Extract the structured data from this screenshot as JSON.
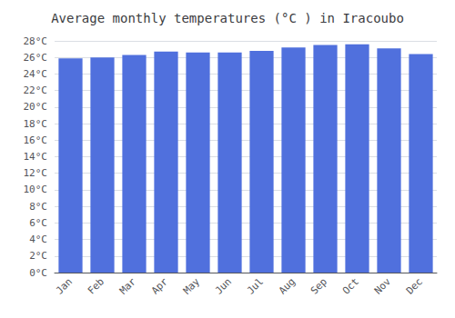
{
  "chart_data": {
    "type": "bar",
    "title": "Average monthly temperatures (°C ) in Iracoubo",
    "categories": [
      "Jan",
      "Feb",
      "Mar",
      "Apr",
      "May",
      "Jun",
      "Jul",
      "Aug",
      "Sep",
      "Oct",
      "Nov",
      "Dec"
    ],
    "values": [
      25.9,
      26.0,
      26.3,
      26.7,
      26.6,
      26.6,
      26.8,
      27.2,
      27.5,
      27.6,
      27.1,
      26.4
    ],
    "ylim": [
      0,
      28
    ],
    "yticks": [
      {
        "value": 0,
        "label": "0°C"
      },
      {
        "value": 2,
        "label": "2°C"
      },
      {
        "value": 4,
        "label": "4°C"
      },
      {
        "value": 6,
        "label": "6°C"
      },
      {
        "value": 8,
        "label": "8°C"
      },
      {
        "value": 10,
        "label": "10°C"
      },
      {
        "value": 12,
        "label": "12°C"
      },
      {
        "value": 14,
        "label": "14°C"
      },
      {
        "value": 16,
        "label": "16°C"
      },
      {
        "value": 18,
        "label": "18°C"
      },
      {
        "value": 20,
        "label": "20°C"
      },
      {
        "value": 22,
        "label": "22°C"
      },
      {
        "value": 24,
        "label": "24°C"
      },
      {
        "value": 26,
        "label": "26°C"
      },
      {
        "value": 28,
        "label": "28°C"
      }
    ],
    "grid": true
  }
}
